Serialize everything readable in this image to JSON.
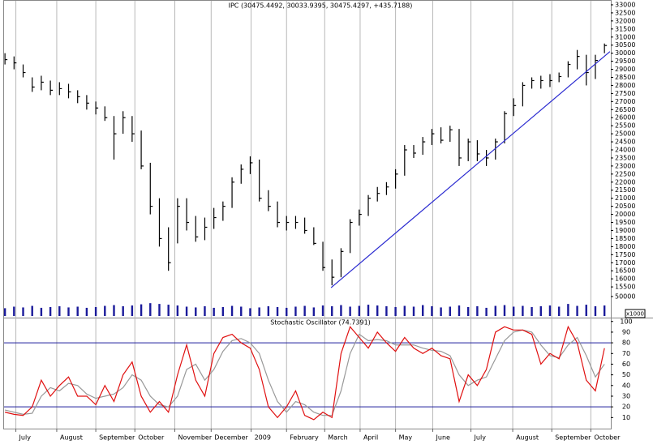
{
  "chart_data": [
    {
      "type": "ohlc",
      "title": "IPC (30475.4492, 30033.9395, 30475.4297, +435.7188)",
      "color": "#000000",
      "xlim": [
        -0.1,
        66.7
      ],
      "ylim": [
        14600,
        33300
      ],
      "yticks": [
        15500,
        16000,
        16500,
        17000,
        17500,
        18000,
        18500,
        19000,
        19500,
        20000,
        20500,
        21000,
        21500,
        22000,
        22500,
        23000,
        23500,
        24000,
        24500,
        25000,
        25500,
        26000,
        26500,
        27000,
        27500,
        28000,
        28500,
        29000,
        29500,
        30000,
        30500,
        31000,
        31500,
        32000,
        32500,
        33000
      ],
      "high": [
        30000,
        29800,
        29300,
        28500,
        28600,
        28300,
        28200,
        28100,
        27700,
        27400,
        27000,
        26700,
        26100,
        26400,
        26100,
        25200,
        23200,
        21000,
        19200,
        21000,
        21000,
        19900,
        19800,
        20400,
        20800,
        22300,
        23100,
        23600,
        23400,
        21500,
        20800,
        19900,
        19900,
        19800,
        19200,
        18300,
        17200,
        17900,
        19700,
        20300,
        21200,
        21700,
        22000,
        22800,
        24300,
        24300,
        24800,
        25300,
        25400,
        25500,
        25300,
        24700,
        24600,
        24000,
        24700,
        26400,
        27200,
        28200,
        28500,
        28600,
        28700,
        28800,
        29500,
        30200,
        29900,
        29900,
        30600
      ],
      "low": [
        29300,
        29000,
        28500,
        27600,
        27700,
        27400,
        27400,
        27200,
        26900,
        26500,
        26200,
        25800,
        23400,
        25000,
        24500,
        22800,
        20000,
        18000,
        16500,
        18200,
        19000,
        18300,
        18400,
        19100,
        19600,
        20400,
        21900,
        22500,
        20800,
        20200,
        19200,
        19000,
        19100,
        18800,
        18100,
        16500,
        15600,
        16100,
        17600,
        19300,
        19900,
        20800,
        21200,
        21600,
        22400,
        23500,
        23700,
        24300,
        24400,
        24500,
        23000,
        23300,
        23300,
        23000,
        23400,
        24400,
        26100,
        26700,
        27800,
        27800,
        27900,
        28200,
        28500,
        29000,
        28000,
        28400,
        30000
      ],
      "close": [
        29600,
        29400,
        28800,
        27900,
        28200,
        27700,
        27800,
        27600,
        27300,
        26900,
        26600,
        26000,
        25000,
        26000,
        25000,
        23000,
        20500,
        18500,
        17000,
        20500,
        19500,
        18600,
        19200,
        19800,
        20500,
        22000,
        22800,
        23200,
        21000,
        20500,
        19500,
        19500,
        19500,
        19000,
        18200,
        16700,
        16100,
        17700,
        19500,
        20000,
        21000,
        21300,
        21700,
        22500,
        24000,
        23800,
        24500,
        25000,
        24600,
        25250,
        23500,
        24500,
        23750,
        23500,
        24500,
        26250,
        26750,
        28000,
        28300,
        28300,
        28300,
        28550,
        29300,
        29800,
        28800,
        29550,
        30475
      ],
      "trendline": {
        "x": [
          35.9,
          66.6
        ],
        "y": [
          15450,
          30100
        ],
        "color": "#2a2ad0"
      }
    },
    {
      "type": "bar",
      "y_label": "x1000",
      "color": "#1a1a9a",
      "xlim": [
        -0.1,
        66.7
      ],
      "ylim": [
        0,
        54000
      ],
      "yticks": [
        50000
      ],
      "values": [
        20000,
        24000,
        22000,
        26000,
        21000,
        23000,
        25000,
        22000,
        24000,
        21000,
        23000,
        26000,
        28000,
        25000,
        27000,
        30000,
        33000,
        31000,
        29000,
        27000,
        24000,
        22000,
        25000,
        21000,
        23000,
        26000,
        24000,
        20000,
        22000,
        25000,
        23000,
        21000,
        24000,
        26000,
        22000,
        27000,
        25000,
        28000,
        24000,
        26000,
        29000,
        27000,
        25000,
        23000,
        26000,
        24000,
        28000,
        25000,
        22000,
        24000,
        27000,
        23000,
        25000,
        21000,
        26000,
        28000,
        24000,
        26000,
        23000,
        25000,
        27000,
        24000,
        31000,
        26000,
        29000,
        25000,
        27000
      ]
    },
    {
      "type": "line",
      "title": "Stochastic Oscillator (74.7391)",
      "xlim": [
        -0.1,
        66.7
      ],
      "ylim": [
        0,
        103
      ],
      "yticks": [
        10,
        20,
        30,
        40,
        50,
        60,
        70,
        80,
        90,
        100
      ],
      "hlines": [
        80,
        20
      ],
      "hline_color": "#1a1a9a",
      "xticks": [
        {
          "value": 1.2,
          "label": "July"
        },
        {
          "value": 5.7,
          "label": "August"
        },
        {
          "value": 10.0,
          "label": "September"
        },
        {
          "value": 14.3,
          "label": "October"
        },
        {
          "value": 18.7,
          "label": "November"
        },
        {
          "value": 22.7,
          "label": "December"
        },
        {
          "value": 27.1,
          "label": "2009"
        },
        {
          "value": 31.0,
          "label": "February"
        },
        {
          "value": 35.2,
          "label": "March"
        },
        {
          "value": 39.1,
          "label": "April"
        },
        {
          "value": 43.0,
          "label": "May"
        },
        {
          "value": 47.1,
          "label": "June"
        },
        {
          "value": 51.3,
          "label": "July"
        },
        {
          "value": 55.9,
          "label": "August"
        },
        {
          "value": 60.2,
          "label": "September"
        },
        {
          "value": 64.5,
          "label": "October"
        }
      ],
      "series": [
        {
          "color": "#e01010",
          "values": [
            15,
            13,
            12,
            20,
            45,
            30,
            40,
            48,
            30,
            30,
            22,
            40,
            25,
            50,
            62,
            30,
            15,
            25,
            15,
            50,
            78,
            45,
            30,
            70,
            85,
            88,
            80,
            75,
            55,
            20,
            10,
            20,
            35,
            12,
            8,
            15,
            10,
            70,
            95,
            85,
            75,
            90,
            80,
            72,
            85,
            75,
            70,
            75,
            68,
            65,
            25,
            50,
            40,
            55,
            90,
            95,
            92,
            92,
            88,
            60,
            70,
            65,
            95,
            80,
            45,
            35,
            75
          ]
        },
        {
          "color": "#999999",
          "values": [
            17,
            15,
            13,
            14,
            30,
            38,
            35,
            42,
            40,
            32,
            28,
            30,
            32,
            38,
            50,
            45,
            30,
            22,
            20,
            30,
            55,
            60,
            45,
            55,
            72,
            82,
            84,
            80,
            70,
            45,
            25,
            15,
            25,
            22,
            15,
            12,
            12,
            35,
            70,
            88,
            82,
            83,
            82,
            78,
            78,
            78,
            75,
            73,
            72,
            68,
            50,
            40,
            45,
            48,
            65,
            82,
            90,
            92,
            90,
            78,
            68,
            66,
            78,
            85,
            68,
            48,
            60
          ]
        }
      ]
    }
  ]
}
